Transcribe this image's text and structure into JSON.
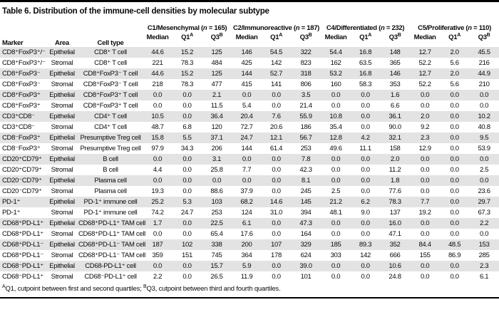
{
  "title": "Table 6. Distribution of the immune-cell densities by molecular subtype",
  "header": {
    "marker": "Marker",
    "area": "Area",
    "cell_type": "Cell type",
    "groups": [
      {
        "name": "C1/Mesenchymal (",
        "n": "n",
        "count": " = 165)"
      },
      {
        "name": "C2/Immunoreactive (",
        "n": "n",
        "count": " = 187)"
      },
      {
        "name": "C4/Differentiated (",
        "n": "n",
        "count": " = 232)"
      },
      {
        "name": "C5/Proliferative (",
        "n": "n",
        "count": " = 110)"
      }
    ],
    "stat_labels": [
      {
        "base": "Median",
        "sup": ""
      },
      {
        "base": "Q1",
        "sup": "A"
      },
      {
        "base": "Q3",
        "sup": "B"
      }
    ]
  },
  "rows": [
    {
      "marker": "CD8⁺FoxP3⁺/⁻",
      "area": "Epithelial",
      "cell": "CD8⁺ T cell",
      "values": [
        "44.6",
        "15.2",
        "125",
        "146",
        "54.5",
        "322",
        "54.4",
        "16.8",
        "148",
        "12.7",
        "2.0",
        "45.5"
      ]
    },
    {
      "marker": "CD8⁺FoxP3⁺/⁻",
      "area": "Stromal",
      "cell": "CD8⁺ T cell",
      "values": [
        "221",
        "78.3",
        "484",
        "425",
        "142",
        "823",
        "162",
        "63.5",
        "365",
        "52.2",
        "5.6",
        "216"
      ]
    },
    {
      "marker": "CD8⁺FoxP3⁻",
      "area": "Epithelial",
      "cell": "CD8⁺FoxP3⁻ T cell",
      "values": [
        "44.6",
        "15.2",
        "125",
        "144",
        "52.7",
        "318",
        "53.2",
        "16.8",
        "146",
        "12.7",
        "2.0",
        "44.9"
      ]
    },
    {
      "marker": "CD8⁺FoxP3⁻",
      "area": "Stromal",
      "cell": "CD8⁺FoxP3⁻ T cell",
      "values": [
        "218",
        "78.3",
        "477",
        "415",
        "141",
        "806",
        "160",
        "58.3",
        "353",
        "52.2",
        "5.6",
        "210"
      ]
    },
    {
      "marker": "CD8⁺FoxP3⁺",
      "area": "Epithelial",
      "cell": "CD8⁺FoxP3⁺ T cell",
      "values": [
        "0.0",
        "0.0",
        "2.1",
        "0.0",
        "0.0",
        "3.5",
        "0.0",
        "0.0",
        "1.6",
        "0.0",
        "0.0",
        "0.0"
      ]
    },
    {
      "marker": "CD8⁺FoxP3⁺",
      "area": "Stromal",
      "cell": "CD8⁺FoxP3⁺ T cell",
      "values": [
        "0.0",
        "0.0",
        "11.5",
        "5.4",
        "0.0",
        "21.4",
        "0.0",
        "0.0",
        "6.6",
        "0.0",
        "0.0",
        "0.0"
      ]
    },
    {
      "marker": "CD3⁺CD8⁻",
      "area": "Epithelial",
      "cell": "CD4⁺ T cell",
      "values": [
        "10.5",
        "0.0",
        "36.4",
        "20.4",
        "7.6",
        "55.9",
        "10.8",
        "0.0",
        "36.1",
        "2.0",
        "0.0",
        "10.2"
      ]
    },
    {
      "marker": "CD3⁺CD8⁻",
      "area": "Stromal",
      "cell": "CD4⁺ T cell",
      "values": [
        "48.7",
        "6.8",
        "120",
        "72.7",
        "20.6",
        "186",
        "35.4",
        "0.0",
        "90.0",
        "9.2",
        "0.0",
        "40.8"
      ]
    },
    {
      "marker": "CD8⁻FoxP3⁺",
      "area": "Epithelial",
      "cell": "Presumptive Treg cell",
      "values": [
        "15.8",
        "5.5",
        "37.1",
        "24.7",
        "12.1",
        "56.7",
        "12.8",
        "4.2",
        "32.1",
        "2.3",
        "0.0",
        "9.5"
      ]
    },
    {
      "marker": "CD8⁻FoxP3⁺",
      "area": "Stromal",
      "cell": "Presumptive Treg cell",
      "values": [
        "97.9",
        "34.3",
        "206",
        "144",
        "61.4",
        "253",
        "49.6",
        "11.1",
        "158",
        "12.9",
        "0.0",
        "53.9"
      ]
    },
    {
      "marker": "CD20⁺CD79⁺",
      "area": "Epithelial",
      "cell": "B cell",
      "values": [
        "0.0",
        "0.0",
        "3.1",
        "0.0",
        "0.0",
        "7.8",
        "0.0",
        "0.0",
        "2.0",
        "0.0",
        "0.0",
        "0.0"
      ]
    },
    {
      "marker": "CD20⁺CD79⁺",
      "area": "Stromal",
      "cell": "B cell",
      "values": [
        "4.4",
        "0.0",
        "25.8",
        "7.7",
        "0.0",
        "42.3",
        "0.0",
        "0.0",
        "11.2",
        "0.0",
        "0.0",
        "2.5"
      ]
    },
    {
      "marker": "CD20⁻CD79⁺",
      "area": "Epithelial",
      "cell": "Plasma cell",
      "values": [
        "0.0",
        "0.0",
        "0.0",
        "0.0",
        "0.0",
        "8.1",
        "0.0",
        "0.0",
        "1.8",
        "0.0",
        "0.0",
        "0.0"
      ]
    },
    {
      "marker": "CD20⁻CD79⁺",
      "area": "Stromal",
      "cell": "Plasma cell",
      "values": [
        "19.3",
        "0.0",
        "88.6",
        "37.9",
        "0.0",
        "245",
        "2.5",
        "0.0",
        "77.6",
        "0.0",
        "0.0",
        "23.6"
      ]
    },
    {
      "marker": "PD-1⁺",
      "area": "Epithelial",
      "cell": "PD-1⁺ immune cell",
      "values": [
        "25.2",
        "5.3",
        "103",
        "68.2",
        "14.6",
        "145",
        "21.2",
        "6.2",
        "78.3",
        "7.7",
        "0.0",
        "29.7"
      ]
    },
    {
      "marker": "PD-1⁺",
      "area": "Stromal",
      "cell": "PD-1⁺ immune cell",
      "values": [
        "74.2",
        "24.7",
        "253",
        "124",
        "31.0",
        "394",
        "48.1",
        "9.0",
        "137",
        "19.2",
        "0.0",
        "67.3"
      ]
    },
    {
      "marker": "CD68⁺PD-L1⁺",
      "area": "Epithelial",
      "cell": "CD68⁺PD-L1⁺ TAM cell",
      "values": [
        "1.7",
        "0.0",
        "22.5",
        "6.1",
        "0.0",
        "47.3",
        "0.0",
        "0.0",
        "16.0",
        "0.0",
        "0.0",
        "2.2"
      ]
    },
    {
      "marker": "CD68⁺PD-L1⁺",
      "area": "Stromal",
      "cell": "CD68⁺PD-L1⁺ TAM cell",
      "values": [
        "0.0",
        "0.0",
        "65.4",
        "17.6",
        "0.0",
        "164",
        "0.0",
        "0.0",
        "47.1",
        "0.0",
        "0.0",
        "0.0"
      ]
    },
    {
      "marker": "CD68⁺PD-L1⁻",
      "area": "Epithelial",
      "cell": "CD68⁺PD-L1⁻ TAM cell",
      "values": [
        "187",
        "102",
        "338",
        "200",
        "107",
        "329",
        "185",
        "89.3",
        "352",
        "84.4",
        "48.5",
        "153"
      ]
    },
    {
      "marker": "CD68⁺PD-L1⁻",
      "area": "Stromal",
      "cell": "CD68⁺PD-L1⁻ TAM cell",
      "values": [
        "359",
        "151",
        "745",
        "364",
        "178",
        "624",
        "303",
        "142",
        "666",
        "155",
        "86.9",
        "285"
      ]
    },
    {
      "marker": "CD68⁻PD-L1⁺",
      "area": "Epithelial",
      "cell": "CD68-PD-L1⁺ cell",
      "values": [
        "0.0",
        "0.0",
        "15.7",
        "5.9",
        "0.0",
        "39.0",
        "0.0",
        "0.0",
        "10.6",
        "0.0",
        "0.0",
        "2.3"
      ]
    },
    {
      "marker": "CD68⁻PD-L1⁺",
      "area": "Stromal",
      "cell": "CD68⁻PD-L1⁺ cell",
      "values": [
        "2.2",
        "0.0",
        "26.5",
        "11.9",
        "0.0",
        "101",
        "0.0",
        "0.0",
        "24.8",
        "0.0",
        "0.0",
        "6.1"
      ]
    }
  ],
  "footnote": {
    "sup1": "A",
    "text1": "Q1, cutpoint between first and second quartiles; ",
    "sup2": "B",
    "text2": "Q3, cutpoint between third and fourth quartiles."
  },
  "colors": {
    "row_shade": "#e3e3e3",
    "rule": "#000000",
    "text": "#0a0a0a"
  }
}
